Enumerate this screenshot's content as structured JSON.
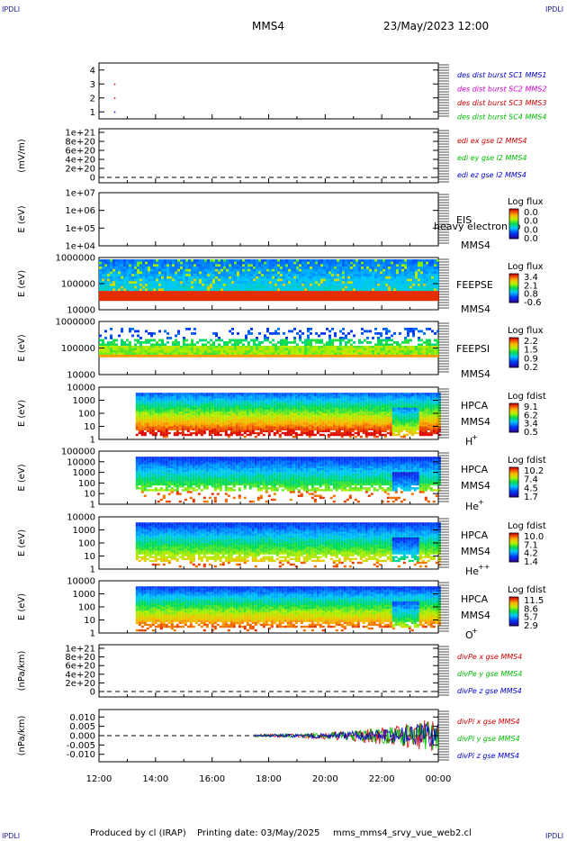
{
  "corner_label": "IPDLI",
  "title_left": "MMS4",
  "title_right": "23/May/2023 12:00",
  "footer": {
    "produced": "Produced by cl (IRAP)",
    "printing_date": "Printing date: 03/May/2025",
    "script": "mms_mms4_srvy_vue_web2.cl"
  },
  "x_ticks": [
    "12:00",
    "14:00",
    "16:00",
    "18:00",
    "20:00",
    "22:00",
    "00:00"
  ],
  "colors": {
    "red": "#cc0000",
    "green": "#00bb00",
    "blue": "#0000cc",
    "magenta": "#cc00cc"
  },
  "chart_data": [
    {
      "type": "scatter",
      "ylim": [
        0.5,
        4.5
      ],
      "yticks": [
        "1",
        "2",
        "3",
        "4"
      ],
      "legend_placement": "right",
      "legend": [
        "des dist burst SC1 MMS1",
        "des dist burst SC2 MMS2",
        "des dist burst SC3 MMS3",
        "des dist burst SC4 MMS4"
      ],
      "points": [
        {
          "x": 12.55,
          "y": 3
        },
        {
          "x": 12.55,
          "y": 2
        },
        {
          "x": 12.55,
          "y": 1
        }
      ]
    },
    {
      "type": "line",
      "ylabel": "(mV/m)",
      "yticks": [
        "0",
        "2e+20",
        "4e+20",
        "6e+20",
        "8e+20",
        "1e+21"
      ],
      "series": [
        {
          "name": "edi ex gse l2 MMS4"
        },
        {
          "name": "edi ey gse l2 MMS4"
        },
        {
          "name": "edi ez gse l2 MMS4"
        }
      ]
    },
    {
      "type": "heatmap",
      "ylabel": "E (eV)",
      "yticks": [
        "1e+04",
        "1e+05",
        "1e+06",
        "1e+07"
      ],
      "instrument": [
        "EIS",
        "MMS4"
      ],
      "overlay_text": "heavy electron to",
      "colorbar": {
        "title": "Log flux",
        "ticks": [
          "0.0",
          "0.0",
          "0.0",
          "0.0"
        ]
      }
    },
    {
      "type": "heatmap",
      "ylabel": "E (eV)",
      "yticks": [
        "10000",
        "100000",
        "1000000"
      ],
      "instrument": [
        "FEEPSE",
        "MMS4"
      ],
      "colorbar": {
        "title": "Log flux",
        "ticks": [
          "3.4",
          "2.1",
          "0.8",
          "-0.6"
        ]
      }
    },
    {
      "type": "heatmap",
      "ylabel": "E (eV)",
      "yticks": [
        "10000",
        "100000",
        "1000000"
      ],
      "instrument": [
        "FEEPSI",
        "MMS4"
      ],
      "colorbar": {
        "title": "Log flux",
        "ticks": [
          "2.2",
          "1.5",
          "0.9",
          "0.2"
        ]
      }
    },
    {
      "type": "heatmap",
      "ylabel": "E (eV)",
      "yticks": [
        "1",
        "10",
        "100",
        "1000",
        "10000"
      ],
      "instrument": [
        "HPCA",
        "MMS4"
      ],
      "species": "H",
      "species_sup": "+",
      "colorbar": {
        "title": "Log fdist",
        "ticks": [
          "9.1",
          "6.2",
          "3.4",
          "0.5"
        ]
      }
    },
    {
      "type": "heatmap",
      "ylabel": "E (eV)",
      "yticks": [
        "1",
        "10",
        "100",
        "1000",
        "10000",
        "100000"
      ],
      "instrument": [
        "HPCA",
        "MMS4"
      ],
      "species": "He",
      "species_sup": "+",
      "colorbar": {
        "title": "Log fdist",
        "ticks": [
          "10.2",
          "7.4",
          "4.5",
          "1.7"
        ]
      }
    },
    {
      "type": "heatmap",
      "ylabel": "E (eV)",
      "yticks": [
        "1",
        "10",
        "100",
        "1000",
        "10000"
      ],
      "instrument": [
        "HPCA",
        "MMS4"
      ],
      "species": "He",
      "species_sup": "++",
      "colorbar": {
        "title": "Log fdist",
        "ticks": [
          "10.0",
          "7.1",
          "4.2",
          "1.4"
        ]
      }
    },
    {
      "type": "heatmap",
      "ylabel": "E (eV)",
      "yticks": [
        "1",
        "10",
        "100",
        "1000",
        "10000"
      ],
      "instrument": [
        "HPCA",
        "MMS4"
      ],
      "species": "O",
      "species_sup": "+",
      "colorbar": {
        "title": "Log fdist",
        "ticks": [
          "11.5",
          "8.6",
          "5.7",
          "2.9"
        ]
      }
    },
    {
      "type": "line",
      "ylabel": "(nPa/km)",
      "yticks": [
        "0",
        "2e+20",
        "4e+20",
        "6e+20",
        "8e+20",
        "1e+21"
      ],
      "series": [
        {
          "name": "divPe x gse MMS4"
        },
        {
          "name": "divPe y gse MMS4"
        },
        {
          "name": "divPe z gse MMS4"
        }
      ]
    },
    {
      "type": "line",
      "ylabel": "(nPa/km)",
      "ylim": [
        -0.014,
        0.014
      ],
      "yticks": [
        "-0.010",
        "-0.005",
        "0.000",
        "0.005",
        "0.010"
      ],
      "series": [
        {
          "name": "divPi x gse MMS4"
        },
        {
          "name": "divPi y gse MMS4"
        },
        {
          "name": "divPi z gse MMS4"
        }
      ],
      "data_range_hours": [
        17.5,
        24
      ]
    }
  ]
}
